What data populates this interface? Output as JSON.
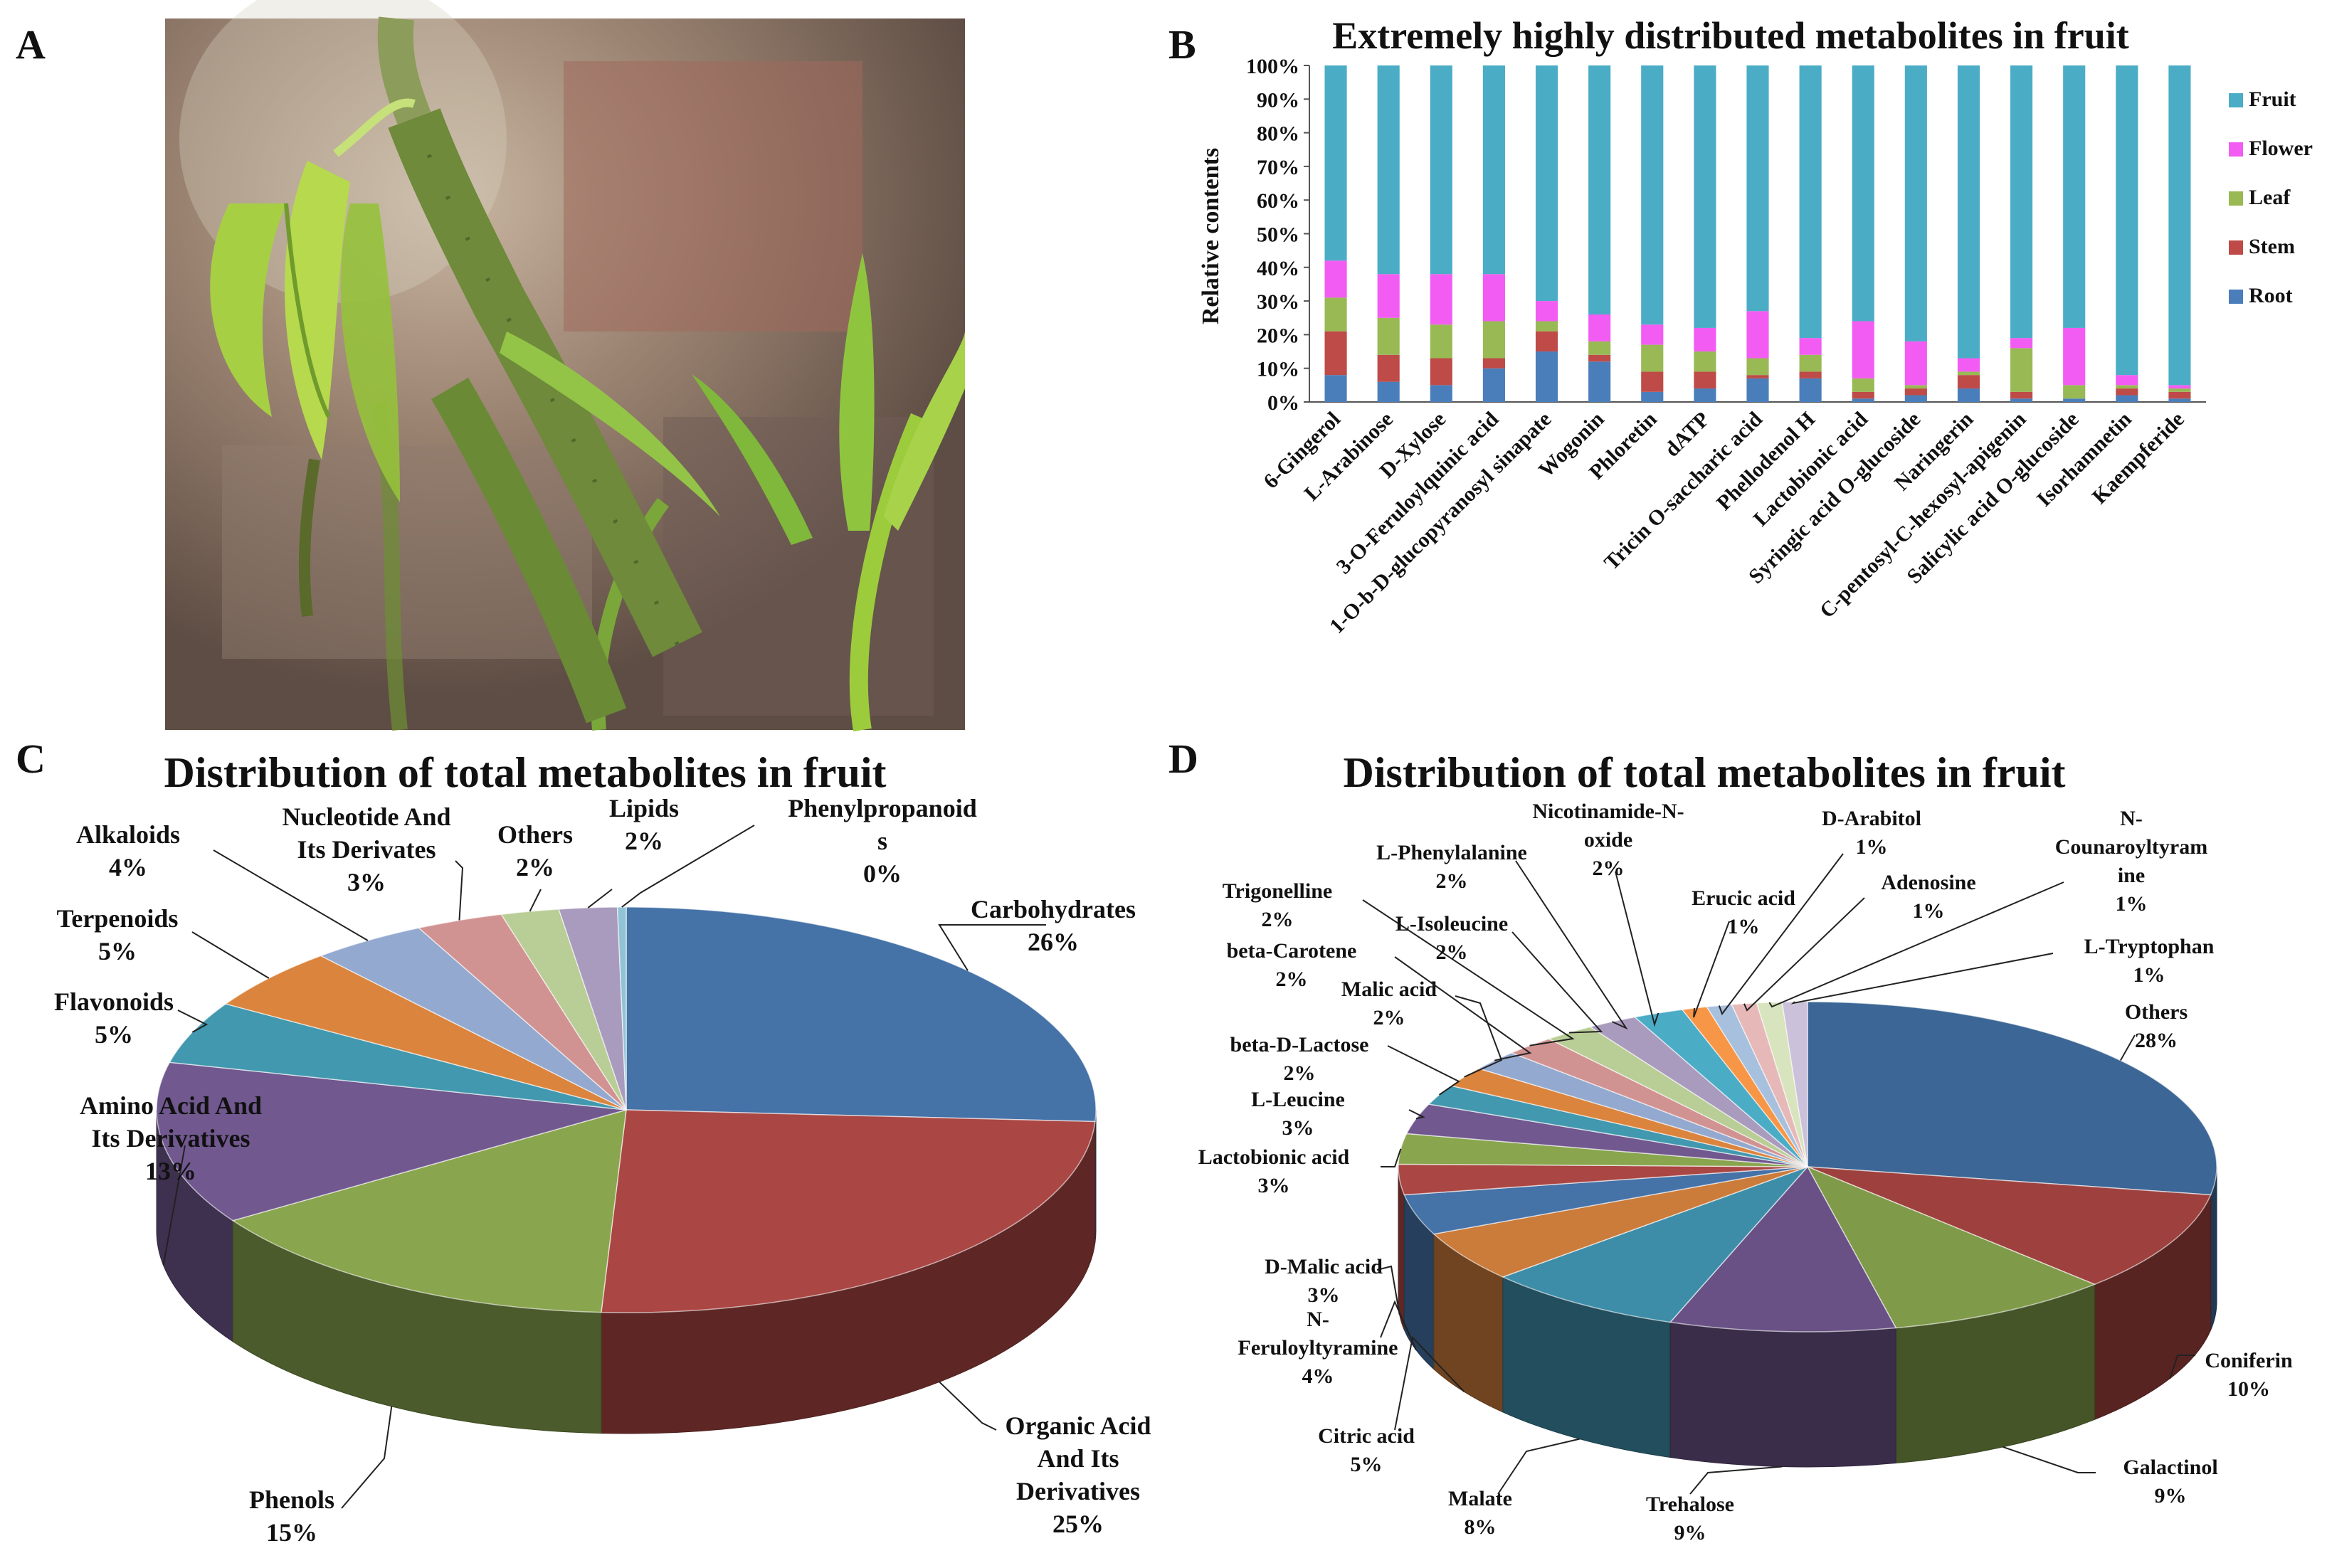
{
  "panel_letters": {
    "a": "A",
    "b": "B",
    "c": "C",
    "d": "D"
  },
  "photo": {
    "description_icon": "plant-photo-icon"
  },
  "colors": {
    "root": "#4a7ebb",
    "stem": "#be4b48",
    "leaf": "#98b954",
    "flower": "#f25cf2",
    "fruit": "#4bacc6"
  },
  "chart_data": [
    {
      "type": "bar",
      "stacked": "percent",
      "title": "Extremely highly distributed metabolites in fruit",
      "xlabel": "",
      "ylabel": "Relative contents",
      "ylim": [
        0,
        100
      ],
      "yticks": [
        "0%",
        "10%",
        "20%",
        "30%",
        "40%",
        "50%",
        "60%",
        "70%",
        "80%",
        "90%",
        "100%"
      ],
      "legend_position": "right",
      "categories": [
        "6-Gingerol",
        "L-Arabinose",
        "D-Xylose",
        "3-O-Feruloylquinic acid",
        "1-O-b-D-glucopyranosyl sinapate",
        "Wogonin",
        "Phloretin",
        "dATP",
        "Tricin O-saccharic acid",
        "Phellodenol H",
        "Lactobionic acid",
        "Syringic acid O-glucoside",
        "Naringerin",
        "C-pentosyl-C-hexosyl-apigenin",
        "Salicylic acid O-glucoside",
        "Isorhamnetin",
        "Kaempferide"
      ],
      "series": [
        {
          "name": "Root",
          "color": "#4a7ebb",
          "values": [
            8,
            6,
            5,
            10,
            15,
            12,
            3,
            4,
            7,
            7,
            1,
            2,
            4,
            1,
            1,
            2,
            1
          ]
        },
        {
          "name": "Stem",
          "color": "#be4b48",
          "values": [
            13,
            8,
            8,
            3,
            6,
            2,
            6,
            5,
            1,
            2,
            2,
            2,
            4,
            2,
            0,
            2,
            2
          ]
        },
        {
          "name": "Leaf",
          "color": "#98b954",
          "values": [
            10,
            11,
            10,
            11,
            3,
            4,
            8,
            6,
            5,
            5,
            4,
            1,
            1,
            13,
            4,
            1,
            1
          ]
        },
        {
          "name": "Flower",
          "color": "#f25cf2",
          "values": [
            11,
            13,
            15,
            14,
            6,
            8,
            6,
            7,
            14,
            5,
            17,
            13,
            4,
            3,
            17,
            3,
            1
          ]
        },
        {
          "name": "Fruit",
          "color": "#4bacc6",
          "values": [
            58,
            62,
            62,
            62,
            70,
            74,
            77,
            78,
            73,
            81,
            76,
            82,
            87,
            81,
            78,
            92,
            95
          ]
        }
      ]
    },
    {
      "type": "pie",
      "style": "3d",
      "title": "Distribution of total metabolites in fruit",
      "slices": [
        {
          "label": "Carbohydrates",
          "value": 26,
          "pct": "26%",
          "color": "#4572a7"
        },
        {
          "label": "Organic Acid And Its Derivatives",
          "value": 25,
          "pct": "25%",
          "color": "#aa4643"
        },
        {
          "label": "Phenols",
          "value": 15,
          "pct": "15%",
          "color": "#89a54e"
        },
        {
          "label": "Amino Acid And Its Derivatives",
          "value": 13,
          "pct": "13%",
          "color": "#71588f"
        },
        {
          "label": "Flavonoids",
          "value": 5,
          "pct": "5%",
          "color": "#4198af"
        },
        {
          "label": "Terpenoids",
          "value": 5,
          "pct": "5%",
          "color": "#db843d"
        },
        {
          "label": "Alkaloids",
          "value": 4,
          "pct": "4%",
          "color": "#93a9cf"
        },
        {
          "label": "Nucleotide And Its Derivates",
          "value": 3,
          "pct": "3%",
          "color": "#d19392"
        },
        {
          "label": "Others",
          "value": 2,
          "pct": "2%",
          "color": "#b9cd96"
        },
        {
          "label": "Lipids",
          "value": 2,
          "pct": "2%",
          "color": "#a99bbd"
        },
        {
          "label": "Phenylpropanoids",
          "value": 0.3,
          "pct": "0%",
          "color": "#91c3d5"
        }
      ]
    },
    {
      "type": "pie",
      "style": "3d",
      "title": "Distribution of total metabolites in fruit",
      "slices": [
        {
          "label": "Others",
          "value": 28,
          "pct": "28%",
          "color": "#3c6695"
        },
        {
          "label": "Coniferin",
          "value": 10,
          "pct": "10%",
          "color": "#9e413e"
        },
        {
          "label": "Galactinol",
          "value": 9,
          "pct": "9%",
          "color": "#7f9a48"
        },
        {
          "label": "Trehalose",
          "value": 9,
          "pct": "9%",
          "color": "#695185"
        },
        {
          "label": "Malate",
          "value": 8,
          "pct": "8%",
          "color": "#3d8da9"
        },
        {
          "label": "Citric acid",
          "value": 5,
          "pct": "5%",
          "color": "#cb7b3a"
        },
        {
          "label": "N-Feruloyltyramine",
          "value": 4,
          "pct": "4%",
          "color": "#4572a7"
        },
        {
          "label": "D-Malic acid",
          "value": 3,
          "pct": "3%",
          "color": "#aa4643"
        },
        {
          "label": "Lactobionic acid",
          "value": 3,
          "pct": "3%",
          "color": "#89a54e"
        },
        {
          "label": "L-Leucine",
          "value": 3,
          "pct": "3%",
          "color": "#71588f"
        },
        {
          "label": "beta-D-Lactose",
          "value": 2,
          "pct": "2%",
          "color": "#4198af"
        },
        {
          "label": "Malic acid",
          "value": 2,
          "pct": "2%",
          "color": "#db843d"
        },
        {
          "label": "beta-Carotene",
          "value": 2,
          "pct": "2%",
          "color": "#93a9cf"
        },
        {
          "label": "Trigonelline",
          "value": 2,
          "pct": "2%",
          "color": "#d19392"
        },
        {
          "label": "L-Isoleucine",
          "value": 2,
          "pct": "2%",
          "color": "#b9cd96"
        },
        {
          "label": "L-Phenylalanine",
          "value": 2,
          "pct": "2%",
          "color": "#a99bbd"
        },
        {
          "label": "Nicotinamide-N-oxide",
          "value": 2,
          "pct": "2%",
          "color": "#4bacc6"
        },
        {
          "label": "Erucic acid",
          "value": 1,
          "pct": "1%",
          "color": "#f79646"
        },
        {
          "label": "D-Arabitol",
          "value": 1,
          "pct": "1%",
          "color": "#a7c0de"
        },
        {
          "label": "Adenosine",
          "value": 1,
          "pct": "1%",
          "color": "#e6b9b8"
        },
        {
          "label": "N-Counaroyltyramine",
          "value": 1,
          "pct": "1%",
          "color": "#d7e4bd"
        },
        {
          "label": "L-Tryptophan",
          "value": 1,
          "pct": "1%",
          "color": "#ccc1da"
        }
      ]
    }
  ],
  "pie_c_labels": [
    {
      "lines": [
        "Carbohydrates",
        "26%"
      ]
    },
    {
      "lines": [
        "Organic Acid",
        "And Its",
        "Derivatives",
        "25%"
      ]
    },
    {
      "lines": [
        "Phenols",
        "15%"
      ]
    },
    {
      "lines": [
        "Amino Acid And",
        "Its Derivatives",
        "13%"
      ]
    },
    {
      "lines": [
        "Flavonoids",
        "5%"
      ]
    },
    {
      "lines": [
        "Terpenoids",
        "5%"
      ]
    },
    {
      "lines": [
        "Alkaloids",
        "4%"
      ]
    },
    {
      "lines": [
        "Nucleotide And",
        "Its Derivates",
        "3%"
      ]
    },
    {
      "lines": [
        "Others",
        "2%"
      ]
    },
    {
      "lines": [
        "Lipids",
        "2%"
      ]
    },
    {
      "lines": [
        "Phenylpropanoid",
        "s",
        "0%"
      ]
    }
  ],
  "pie_d_labels": [
    {
      "lines": [
        "Others",
        "28%"
      ]
    },
    {
      "lines": [
        "Coniferin",
        "10%"
      ]
    },
    {
      "lines": [
        "Galactinol",
        "9%"
      ]
    },
    {
      "lines": [
        "Trehalose",
        "9%"
      ]
    },
    {
      "lines": [
        "Malate",
        "8%"
      ]
    },
    {
      "lines": [
        "Citric acid",
        "5%"
      ]
    },
    {
      "lines": [
        "N-",
        "Feruloyltyramine",
        "4%"
      ]
    },
    {
      "lines": [
        "D-Malic acid",
        "3%"
      ]
    },
    {
      "lines": [
        "Lactobionic acid",
        "3%"
      ]
    },
    {
      "lines": [
        "L-Leucine",
        "3%"
      ]
    },
    {
      "lines": [
        "beta-D-Lactose",
        "2%"
      ]
    },
    {
      "lines": [
        "Malic acid",
        "2%"
      ]
    },
    {
      "lines": [
        "beta-Carotene",
        "2%"
      ]
    },
    {
      "lines": [
        "Trigonelline",
        "2%"
      ]
    },
    {
      "lines": [
        "L-Isoleucine",
        "2%"
      ]
    },
    {
      "lines": [
        "L-Phenylalanine",
        "2%"
      ]
    },
    {
      "lines": [
        "Nicotinamide-N-",
        "oxide",
        "2%"
      ]
    },
    {
      "lines": [
        "Erucic acid",
        "1%"
      ]
    },
    {
      "lines": [
        "D-Arabitol",
        "1%"
      ]
    },
    {
      "lines": [
        "Adenosine",
        "1%"
      ]
    },
    {
      "lines": [
        "N-",
        "Counaroyltyram",
        "ine",
        "1%"
      ]
    },
    {
      "lines": [
        "L-Tryptophan",
        "1%"
      ]
    }
  ]
}
